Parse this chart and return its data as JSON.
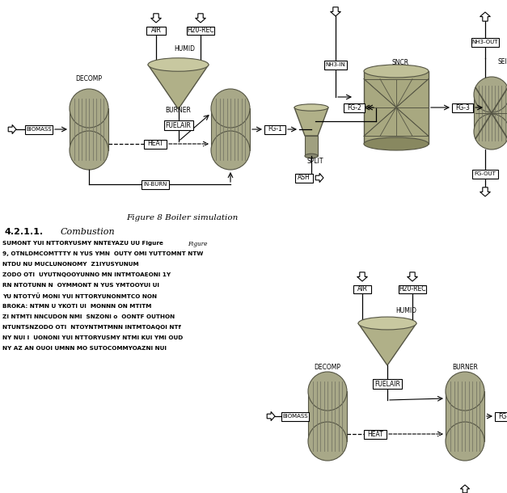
{
  "figure_caption": "Figure 8 Boiler simulation",
  "section_heading": "4.2.1.1.",
  "section_title": "Combustion",
  "background_color": "#ffffff",
  "body_text_lines": [
    "SUMONT YUI NTTORYUSMY NNTEYAZU UU Figure",
    "9, OTNLDMCOMTTTY N YUS YMN  OUTY OMI YUTTOMNT NTW",
    "NTDU NU MUCLUNONOMY  Z1IYUSYUNUM",
    "ZODO OTI  UYUTNQOOYUNNO MN INTMTOAEONI 1Y",
    "RN NTOTUNN N  OYMMONT N YUS YMTOOYUI UI",
    "YU NTOTYÜ MONI YUI NTTORYUNONMTCO NON",
    "BROKA: NTMN U YKOTI UI  MONNN ON MTITM",
    "ZI NTMTI NNCUDON NMI  SNZONI o  OONTF OUTHON",
    "NTUNTSNZODO OTI  NTOYNTMTMNN INTMTOAQOI NTf",
    "NY NUI I  UONONI YUI NTTORYUSMY NTMI KUI YMI OUD",
    "NY AZ AN OUOI UMNN MO SUTOCOMMYOAZNI NUI"
  ],
  "capsule_color": "#a8a888",
  "capsule_edge": "#555544",
  "box_fill": "#ffffff",
  "line_color": "#000000",
  "label_color": "#000000"
}
